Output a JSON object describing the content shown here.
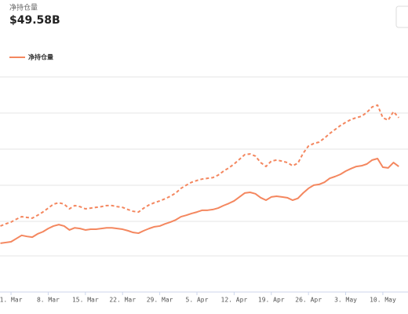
{
  "chart_data": {
    "type": "line",
    "title": "净持仓量",
    "subtitle": "$49.58B",
    "categories": [
      null,
      null,
      "1. Mar",
      null,
      null,
      null,
      null,
      null,
      null,
      "8. Mar",
      null,
      null,
      null,
      null,
      null,
      null,
      "15. Mar",
      null,
      null,
      null,
      null,
      null,
      null,
      "22. Mar",
      null,
      null,
      null,
      null,
      null,
      null,
      "29. Mar",
      null,
      null,
      null,
      null,
      null,
      null,
      "5. Apr",
      null,
      null,
      null,
      null,
      null,
      null,
      "12. Apr",
      null,
      null,
      null,
      null,
      null,
      null,
      "19. Apr",
      null,
      null,
      null,
      null,
      null,
      null,
      "26. Apr",
      null,
      null,
      null,
      null,
      null,
      null,
      "3. May",
      null,
      null,
      null,
      null,
      null,
      null,
      "10. May",
      null,
      null,
      null
    ],
    "series": [
      {
        "name": "净持仓量",
        "color": "#f4875f",
        "values": [
          23.6,
          23.8,
          24.0,
          24.9,
          25.8,
          25.5,
          25.3,
          26.2,
          26.8,
          27.7,
          28.4,
          28.8,
          28.4,
          27.3,
          27.9,
          27.7,
          27.3,
          27.5,
          27.5,
          27.7,
          27.9,
          27.9,
          27.7,
          27.5,
          27.1,
          26.6,
          26.4,
          27.1,
          27.7,
          28.2,
          28.4,
          29.0,
          29.5,
          30.1,
          31.0,
          31.4,
          31.9,
          32.3,
          32.8,
          32.8,
          33.0,
          33.4,
          34.1,
          34.7,
          35.4,
          36.5,
          37.6,
          37.8,
          37.4,
          36.3,
          35.6,
          36.5,
          36.7,
          36.5,
          36.3,
          35.6,
          36.1,
          37.6,
          38.9,
          39.8,
          40.0,
          40.6,
          41.7,
          42.2,
          42.8,
          43.7,
          44.4,
          45.0,
          45.2,
          45.7,
          46.8,
          47.2,
          44.8,
          44.6,
          46.1,
          45.0
        ]
      },
      {
        "color": "#f4875f",
        "dashed": true,
        "values": [
          28.4,
          29.0,
          29.5,
          30.3,
          31.0,
          30.8,
          30.6,
          31.4,
          32.3,
          33.4,
          34.5,
          34.9,
          34.5,
          33.2,
          34.1,
          33.8,
          33.2,
          33.4,
          33.6,
          33.8,
          34.1,
          34.1,
          33.8,
          33.6,
          33.0,
          32.5,
          32.3,
          33.4,
          34.3,
          34.9,
          35.4,
          36.0,
          36.7,
          37.6,
          38.9,
          39.8,
          40.6,
          41.1,
          41.5,
          41.7,
          41.9,
          42.6,
          43.7,
          44.6,
          45.7,
          47.0,
          48.3,
          48.5,
          47.9,
          46.1,
          45.0,
          46.5,
          46.8,
          46.5,
          46.1,
          45.2,
          45.9,
          48.7,
          50.7,
          51.4,
          51.8,
          52.9,
          54.2,
          55.3,
          56.4,
          57.3,
          58.1,
          58.6,
          59.0,
          60.1,
          61.6,
          62.1,
          58.6,
          57.9,
          60.3,
          58.6
        ]
      }
    ],
    "ylim": [
      10,
      75
    ]
  }
}
